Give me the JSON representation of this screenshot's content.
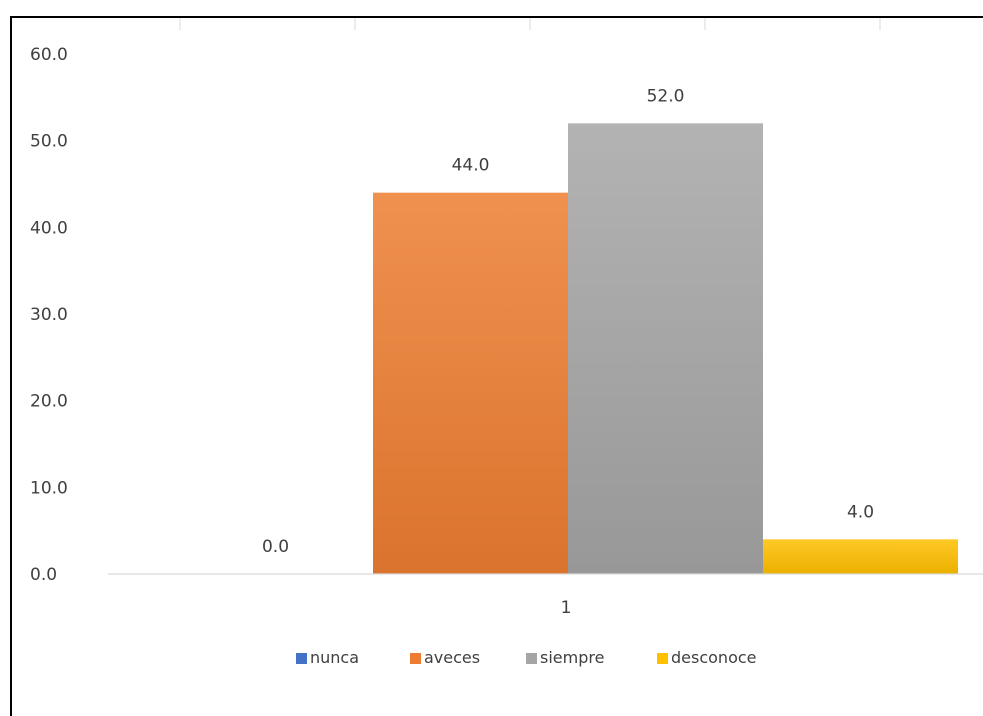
{
  "chart_data": {
    "type": "bar",
    "categories": [
      "1"
    ],
    "series": [
      {
        "name": "nunca",
        "values": [
          0.0
        ],
        "color": "#4472C4"
      },
      {
        "name": "aveces",
        "values": [
          44.0
        ],
        "color": "#ED7D31"
      },
      {
        "name": "siempre",
        "values": [
          52.0
        ],
        "color": "#A5A5A5"
      },
      {
        "name": "desconoce",
        "values": [
          4.0
        ],
        "color": "#FFC000"
      }
    ],
    "data_labels": [
      "0.0",
      "44.0",
      "52.0",
      "4.0"
    ],
    "y_ticks": [
      "0.0",
      "10.0",
      "20.0",
      "30.0",
      "40.0",
      "50.0",
      "60.0"
    ],
    "ylim": [
      0,
      60
    ],
    "title": "",
    "xlabel": "",
    "ylabel": "",
    "grid": false,
    "legend_position": "bottom"
  }
}
